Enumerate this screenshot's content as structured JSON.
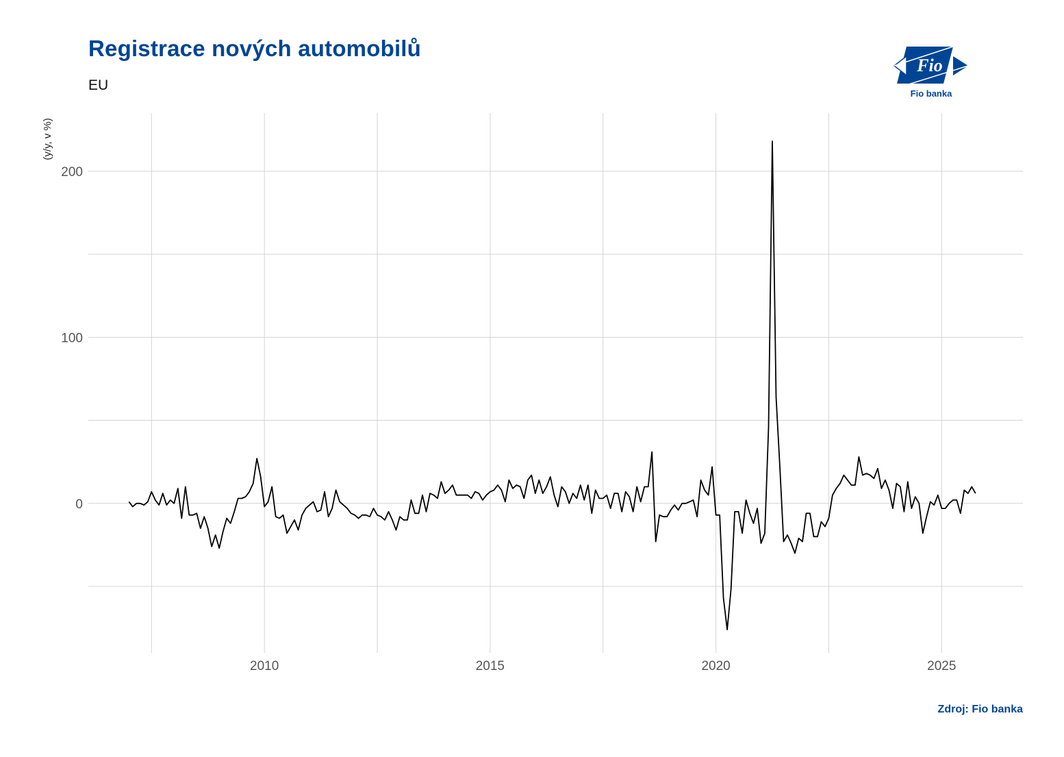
{
  "header": {
    "title": "Registrace nových automobilů",
    "subtitle": "EU"
  },
  "logo": {
    "icon": "fio-banka-logo-icon",
    "mark_text": "Fio",
    "caption": "Fio banka",
    "color": "#004595"
  },
  "footer": {
    "source": "Zdroj: Fio banka"
  },
  "chart_data": {
    "type": "line",
    "title": "Registrace nových automobilů",
    "subtitle": "EU",
    "xlabel": "",
    "ylabel": "(y/y, v %)",
    "xlim": [
      2006.1,
      2026.8
    ],
    "ylim": [
      -90,
      235
    ],
    "x_ticks": [
      2010,
      2015,
      2020,
      2025
    ],
    "y_ticks": [
      0,
      100,
      200
    ],
    "grid": true,
    "legend": "none",
    "line_color": "#000000",
    "grid_color": "#d4d4d4",
    "x_start": 2007.0,
    "x_step_months": 1,
    "series": [
      {
        "values": [
          1,
          -2,
          0,
          0,
          -1,
          1,
          7,
          2,
          -1,
          6,
          -1,
          2,
          0,
          9,
          -9,
          10,
          -7,
          -7,
          -6,
          -15,
          -8,
          -15,
          -26,
          -19,
          -27,
          -17,
          -9,
          -12,
          -5,
          3,
          3,
          4,
          7,
          12,
          27,
          16,
          -2,
          1,
          10,
          -8,
          -9,
          -7,
          -18,
          -14,
          -10,
          -16,
          -7,
          -3,
          -1,
          1,
          -5,
          -4,
          7,
          -8,
          -3,
          8,
          1,
          -1,
          -3,
          -6,
          -7,
          -9,
          -7,
          -7,
          -8,
          -3,
          -7,
          -8,
          -10,
          -5,
          -10,
          -16,
          -8,
          -10,
          -10,
          2,
          -6,
          -6,
          5,
          -5,
          6,
          5,
          3,
          13,
          6,
          8,
          11,
          5,
          5,
          5,
          5,
          3,
          7,
          6,
          2,
          5,
          7,
          8,
          11,
          8,
          1,
          14,
          9,
          11,
          10,
          3,
          14,
          17,
          6,
          14,
          6,
          10,
          16,
          5,
          -2,
          10,
          7,
          0,
          6,
          3,
          11,
          2,
          11,
          -6,
          8,
          3,
          3,
          5,
          -3,
          6,
          6,
          -5,
          7,
          4,
          -5,
          10,
          1,
          10,
          10,
          31,
          -23,
          -7,
          -8,
          -8,
          -4,
          -1,
          -4,
          0,
          0,
          1,
          2,
          -8,
          14,
          8,
          5,
          22,
          -7,
          -7,
          -57,
          -76,
          -52,
          -5,
          -5,
          -18,
          2,
          -6,
          -12,
          -3,
          -24,
          -18,
          46,
          218,
          64,
          22,
          -23,
          -19,
          -24,
          -30,
          -21,
          -23,
          -6,
          -6,
          -20,
          -20,
          -11,
          -14,
          -9,
          5,
          9,
          12,
          17,
          14,
          11,
          11,
          28,
          17,
          18,
          17,
          15,
          21,
          9,
          14,
          8,
          -3,
          12,
          10,
          -5,
          13,
          -3,
          4,
          0,
          -18,
          -8,
          1,
          -1,
          5,
          -3,
          -3,
          0,
          2,
          2,
          -6,
          8,
          6,
          10,
          6
        ]
      }
    ]
  }
}
